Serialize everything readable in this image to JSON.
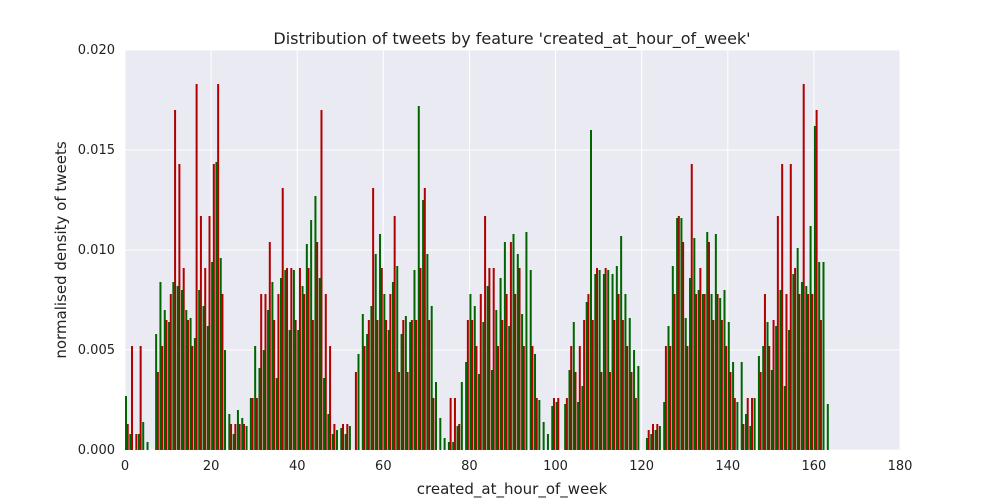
{
  "chart_data": {
    "type": "bar",
    "title": "Distribution of tweets by feature 'created_at_hour_of_week'",
    "xlabel": "created_at_hour_of_week",
    "ylabel": "normalised density of tweets",
    "xlim": [
      0,
      180
    ],
    "ylim": [
      0,
      0.02
    ],
    "xticks": [
      0,
      20,
      40,
      60,
      80,
      100,
      120,
      140,
      160,
      180
    ],
    "yticks": [
      0.0,
      0.005,
      0.01,
      0.015,
      0.02
    ],
    "xtick_labels": [
      "0",
      "20",
      "40",
      "60",
      "80",
      "100",
      "120",
      "140",
      "160",
      "180"
    ],
    "ytick_labels": [
      "0.000",
      "0.005",
      "0.010",
      "0.015",
      "0.020"
    ],
    "grid": true,
    "background_color": "#eaeaf2",
    "series": [
      {
        "color": "#b00000",
        "values": [
          0.0013,
          0.0052,
          0.0008,
          0.0052,
          0.0,
          0.0,
          0.0,
          0.0039,
          0.0052,
          0.0065,
          0.0078,
          0.017,
          0.0143,
          0.0091,
          0.0065,
          0.0052,
          0.0183,
          0.0117,
          0.0091,
          0.0117,
          0.0143,
          0.0183,
          0.0078,
          0.0,
          0.0013,
          0.0013,
          0.0013,
          0.0013,
          0.0,
          0.0026,
          0.0026,
          0.0078,
          0.0078,
          0.0104,
          0.0065,
          0.0078,
          0.0131,
          0.0091,
          0.0091,
          0.0065,
          0.0091,
          0.0078,
          0.0091,
          0.0065,
          0.0104,
          0.017,
          0.0078,
          0.0052,
          0.0013,
          0.0,
          0.0013,
          0.0013,
          0.0,
          0.0039,
          0.0,
          0.0052,
          0.0065,
          0.0131,
          0.0065,
          0.0091,
          0.0065,
          0.0078,
          0.0117,
          0.0039,
          0.0065,
          0.0039,
          0.0065,
          0.0065,
          0.0091,
          0.0131,
          0.0065,
          0.0026,
          0.0,
          0.0,
          0.0,
          0.0026,
          0.0026,
          0.0013,
          0.0,
          0.0065,
          0.0065,
          0.0052,
          0.0078,
          0.0117,
          0.0091,
          0.0091,
          0.0052,
          0.0065,
          0.0078,
          0.0104,
          0.0078,
          0.0091,
          0.0052,
          0.0,
          0.0052,
          0.0026,
          0.0,
          0.0,
          0.0,
          0.0026,
          0.0026,
          0.0,
          0.0026,
          0.0052,
          0.0039,
          0.0052,
          0.0065,
          0.0078,
          0.0065,
          0.0091,
          0.0039,
          0.0091,
          0.0039,
          0.0065,
          0.0078,
          0.0065,
          0.0052,
          0.0039,
          0.0026,
          0.0,
          0.0,
          0.001,
          0.0013,
          0.0013,
          0.0,
          0.0052,
          0.0052,
          0.0078,
          0.0117,
          0.0104,
          0.0052,
          0.0143,
          0.0078,
          0.0091,
          0.0078,
          0.0104,
          0.0065,
          0.0078,
          0.0065,
          0.0052,
          0.0039,
          0.0026,
          0.0,
          0.0013,
          0.0026,
          0.0026,
          0.0,
          0.0039,
          0.0078,
          0.0052,
          0.0065,
          0.0117,
          0.0143,
          0.0078,
          0.0143,
          0.0091,
          0.0078,
          0.0183,
          0.0078,
          0.0078,
          0.017,
          0.0065,
          0.0,
          0.0,
          0.0
        ]
      },
      {
        "color": "#006400",
        "values": [
          0.0027,
          0.0008,
          0.0,
          0.0008,
          0.0014,
          0.0004,
          0.0,
          0.0058,
          0.0084,
          0.007,
          0.0064,
          0.0084,
          0.0082,
          0.008,
          0.007,
          0.0066,
          0.0056,
          0.008,
          0.0072,
          0.0062,
          0.0094,
          0.0144,
          0.0096,
          0.005,
          0.0018,
          0.0008,
          0.002,
          0.0016,
          0.0012,
          0.0026,
          0.0052,
          0.0041,
          0.005,
          0.007,
          0.0084,
          0.0036,
          0.0086,
          0.009,
          0.006,
          0.009,
          0.006,
          0.0082,
          0.0103,
          0.0115,
          0.0127,
          0.0086,
          0.0036,
          0.0018,
          0.0008,
          0.001,
          0.0011,
          0.0008,
          0.0012,
          0.0,
          0.0048,
          0.0068,
          0.0058,
          0.0072,
          0.0098,
          0.0108,
          0.0078,
          0.006,
          0.0084,
          0.0092,
          0.0058,
          0.0067,
          0.0064,
          0.009,
          0.0172,
          0.0125,
          0.0098,
          0.0072,
          0.0034,
          0.0016,
          0.0006,
          0.0004,
          0.0004,
          0.0012,
          0.0034,
          0.0044,
          0.0078,
          0.0072,
          0.0038,
          0.0064,
          0.0082,
          0.004,
          0.007,
          0.0086,
          0.0104,
          0.0062,
          0.0108,
          0.0098,
          0.0068,
          0.0109,
          0.009,
          0.0048,
          0.0025,
          0.0014,
          0.0008,
          0.0022,
          0.0024,
          0.0,
          0.0023,
          0.004,
          0.0064,
          0.0024,
          0.0032,
          0.0074,
          0.016,
          0.0088,
          0.009,
          0.0088,
          0.009,
          0.0088,
          0.0092,
          0.0107,
          0.0078,
          0.0066,
          0.005,
          0.0042,
          0.0,
          0.0006,
          0.0008,
          0.001,
          0.0012,
          0.0024,
          0.0062,
          0.0092,
          0.0116,
          0.0116,
          0.0066,
          0.0086,
          0.0106,
          0.008,
          0.0078,
          0.0109,
          0.0078,
          0.0108,
          0.0076,
          0.008,
          0.0064,
          0.0044,
          0.0024,
          0.0044,
          0.0018,
          0.0012,
          0.0026,
          0.0047,
          0.0052,
          0.0064,
          0.004,
          0.0062,
          0.008,
          0.0032,
          0.006,
          0.0088,
          0.0101,
          0.0084,
          0.0082,
          0.0112,
          0.0162,
          0.0094,
          0.0094,
          0.0023
        ]
      }
    ]
  }
}
